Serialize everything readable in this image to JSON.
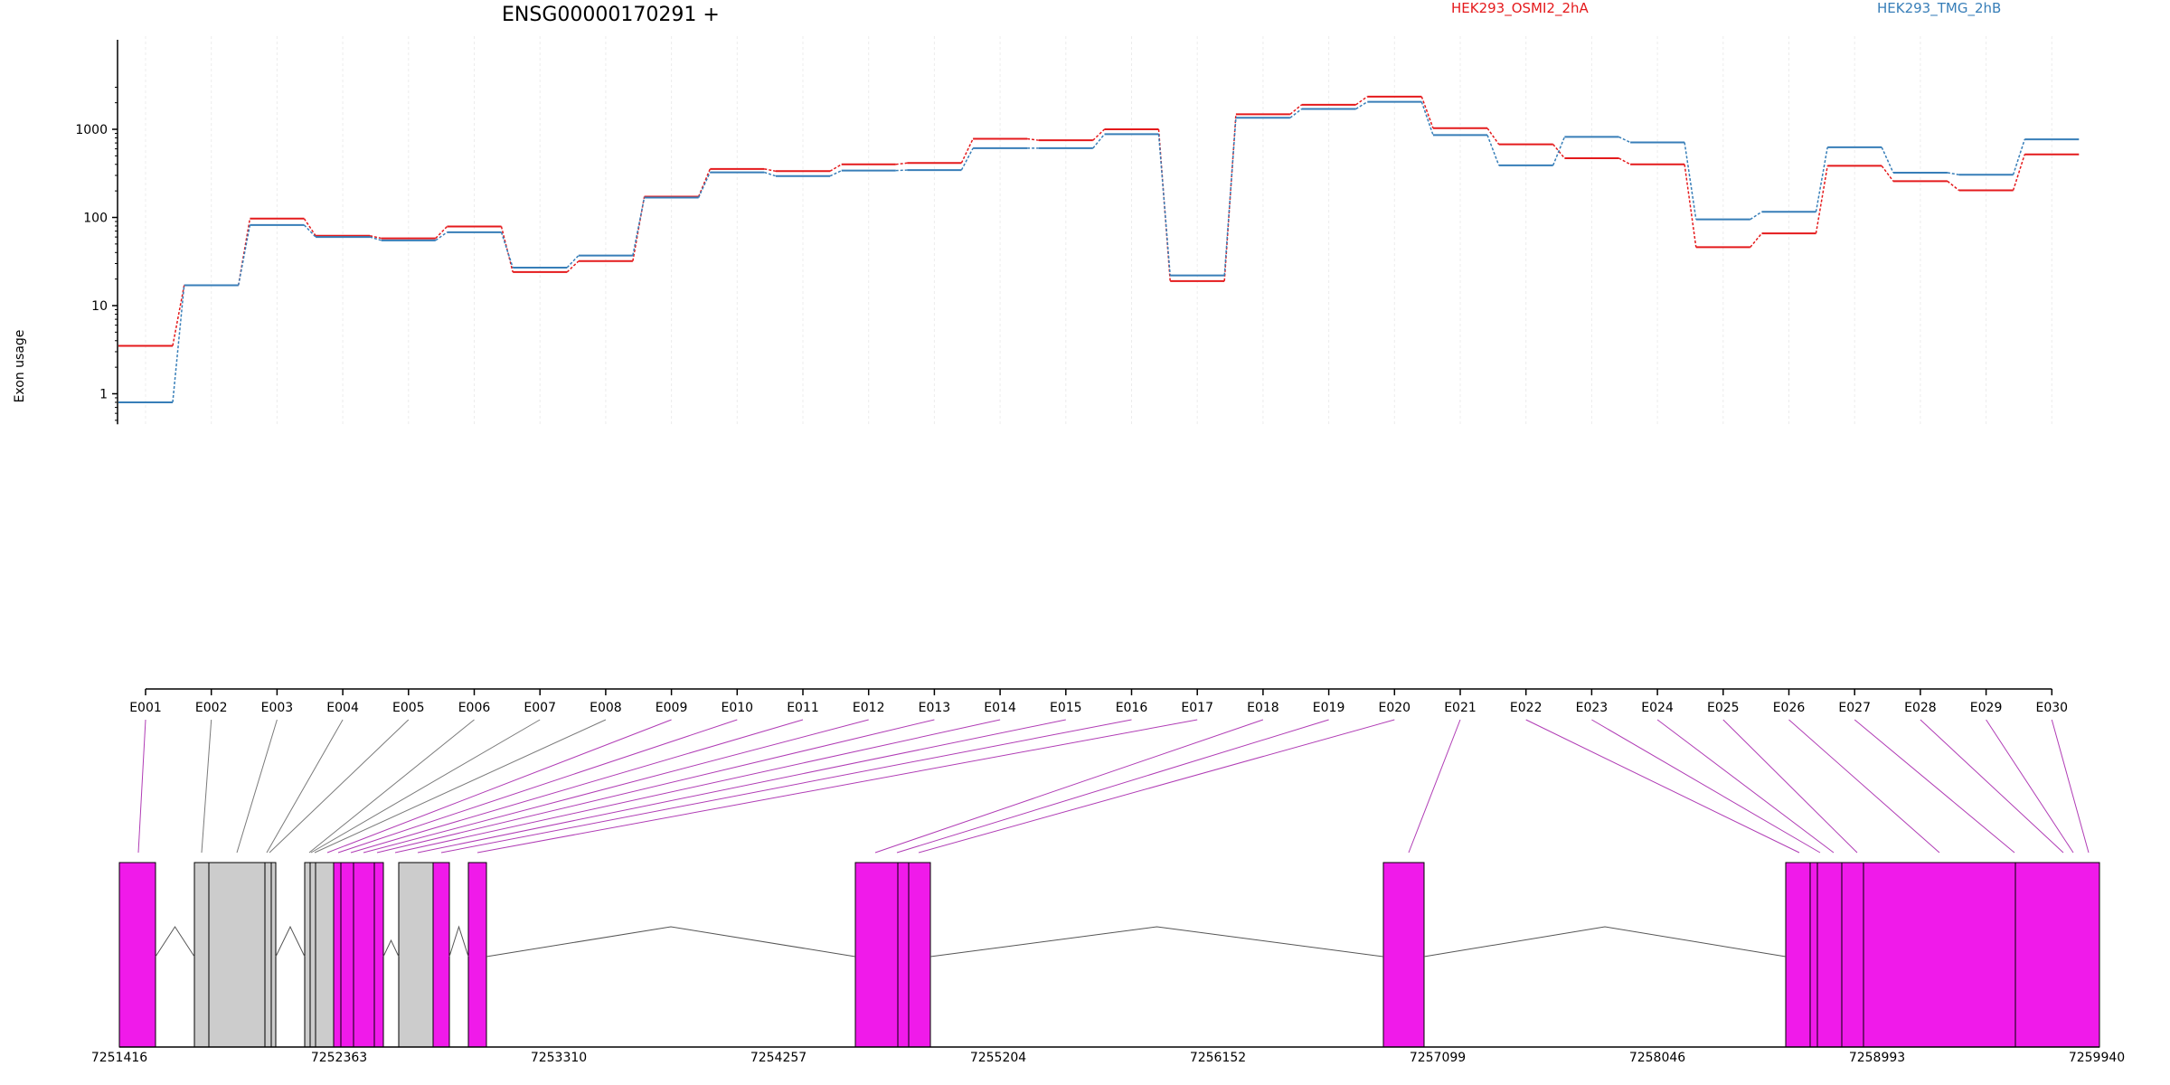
{
  "chart_data": {
    "type": "line",
    "title": "ENSG00000170291 +",
    "ylabel": "Exon usage",
    "yscale": "log",
    "ylim": [
      0.45,
      3300
    ],
    "yticks": [
      "1",
      "10",
      "100",
      "1000"
    ],
    "categories": [
      "E001",
      "E002",
      "E003",
      "E004",
      "E005",
      "E006",
      "E007",
      "E008",
      "E009",
      "E010",
      "E011",
      "E012",
      "E013",
      "E014",
      "E015",
      "E016",
      "E017",
      "E018",
      "E019",
      "E020",
      "E021",
      "E022",
      "E023",
      "E024",
      "E025",
      "E026",
      "E027",
      "E028",
      "E029",
      "E030"
    ],
    "series": [
      {
        "name": "HEK293_OSMI2_2hA",
        "color": "#e41a1c",
        "values": [
          3.5,
          17,
          97,
          62,
          58,
          79,
          24,
          32,
          172,
          355,
          335,
          400,
          415,
          780,
          750,
          1000,
          19,
          1480,
          1900,
          2350,
          1030,
          675,
          470,
          400,
          46,
          66,
          385,
          258,
          203,
          520
        ]
      },
      {
        "name": "HEK293_TMG_2hB",
        "color": "#377eb8",
        "values": [
          0.8,
          17,
          82,
          60,
          55,
          68,
          27,
          37,
          168,
          325,
          295,
          340,
          345,
          610,
          610,
          880,
          22,
          1350,
          1700,
          2050,
          860,
          390,
          820,
          710,
          95,
          116,
          625,
          322,
          305,
          770
        ]
      }
    ],
    "gene_model": {
      "coordinate_labels": [
        "7251416",
        "7252363",
        "7253310",
        "7254257",
        "7255204",
        "7256152",
        "7257099",
        "7258046",
        "7258993",
        "7259940"
      ],
      "highlight_color": "#f01aea",
      "neutral_color": "#cccccc"
    }
  }
}
